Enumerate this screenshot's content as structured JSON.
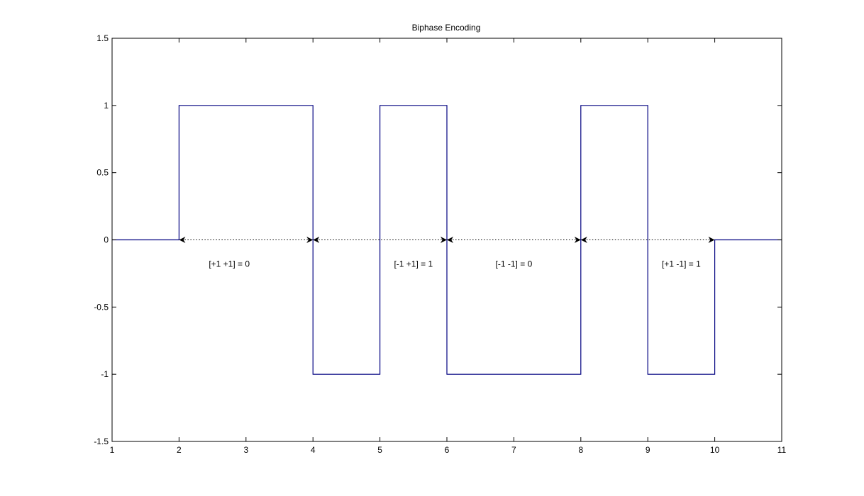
{
  "chart_data": {
    "type": "line",
    "title": "Biphase Encoding",
    "xlabel": "",
    "ylabel": "",
    "xlim": [
      1,
      11
    ],
    "ylim": [
      -1.5,
      1.5
    ],
    "x_ticks": [
      1,
      2,
      3,
      4,
      5,
      6,
      7,
      8,
      9,
      10,
      11
    ],
    "x_tick_labels": [
      "1",
      "2",
      "3",
      "4",
      "5",
      "6",
      "7",
      "8",
      "9",
      "10",
      "11"
    ],
    "y_ticks": [
      1.5,
      1,
      0.5,
      0,
      -0.5,
      -1,
      -1.5
    ],
    "y_tick_labels": [
      "1.5",
      "1",
      "0.5",
      "0",
      "-0.5",
      "-1",
      "-1.5"
    ],
    "grid": false,
    "legend": "none",
    "series": [
      {
        "style": "step",
        "color": "#000080",
        "x": [
          1,
          2,
          2,
          4,
          4,
          5,
          5,
          6,
          6,
          8,
          8,
          9,
          9,
          10,
          10,
          11
        ],
        "y": [
          0,
          0,
          1,
          1,
          -1,
          -1,
          1,
          1,
          -1,
          -1,
          1,
          1,
          -1,
          -1,
          0,
          0
        ]
      }
    ],
    "arrows": [
      {
        "from": 2,
        "to": 4,
        "y": 0
      },
      {
        "from": 4,
        "to": 6,
        "y": 0
      },
      {
        "from": 6,
        "to": 8,
        "y": 0
      },
      {
        "from": 8,
        "to": 10,
        "y": 0
      }
    ],
    "annotations": [
      {
        "text": "[+1 +1] = 0",
        "x": 2.75,
        "y": -0.2
      },
      {
        "text": "[-1 +1] = 1",
        "x": 5.5,
        "y": -0.2
      },
      {
        "text": "[-1 -1] = 0",
        "x": 7,
        "y": -0.2
      },
      {
        "text": "[+1 -1] = 1",
        "x": 9.5,
        "y": -0.2
      }
    ],
    "colors": {
      "line": "#000080",
      "axes": "#000000",
      "background": "#ffffff"
    }
  }
}
